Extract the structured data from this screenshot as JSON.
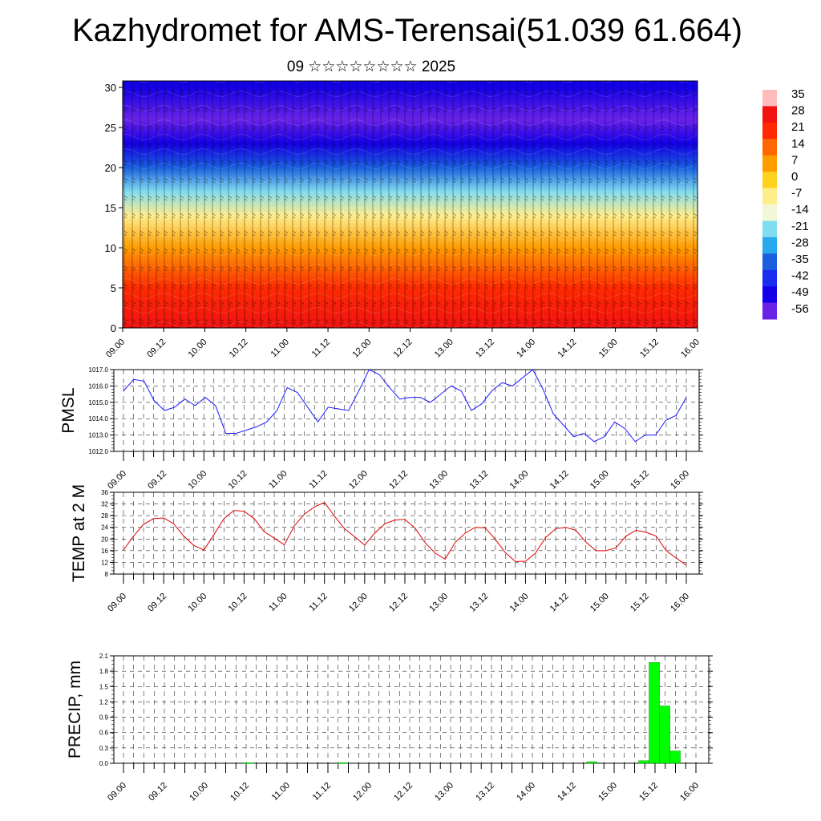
{
  "page": {
    "title": "Kazhydromet for AMS-Terensai(51.039 61.664)",
    "subtitle": "09 ☆☆☆☆☆☆☆☆ 2025"
  },
  "colors": {
    "pmsl_line": "#1a1aff",
    "temp_line": "#e00000",
    "precip_bar": "#00ff00",
    "precip_bar_edge": "#009900"
  },
  "chart_data": [
    {
      "type": "heatmap",
      "name": "upper-air-section",
      "x_ticks": [
        "09.00",
        "09.12",
        "10.00",
        "10.12",
        "11.00",
        "11.12",
        "12.00",
        "12.12",
        "13.00",
        "13.12",
        "14.00",
        "14.12",
        "15.00",
        "15.12",
        "16.00"
      ],
      "y_ticks": [
        "0",
        "5",
        "10",
        "15",
        "20",
        "25",
        "30"
      ],
      "ylim": [
        0,
        30.8
      ],
      "colorbar": {
        "labels": [
          "35",
          "28",
          "21",
          "14",
          "7",
          "0",
          "-7",
          "-14",
          "-21",
          "-28",
          "-35",
          "-42",
          "-49",
          "-56"
        ],
        "colors": [
          "#ffbcbc",
          "#f21212",
          "#ff2a00",
          "#ff6800",
          "#ff9c00",
          "#ffd21e",
          "#ffee8c",
          "#f0f8d8",
          "#80dcf0",
          "#28a8ee",
          "#1a5fe0",
          "#1a2cf0",
          "#1400e8",
          "#6a22e8"
        ]
      },
      "temperature_by_height": [
        {
          "z": 0,
          "t": 28
        },
        {
          "z": 5,
          "t": 22
        },
        {
          "z": 10,
          "t": 6
        },
        {
          "z": 14,
          "t": -7
        },
        {
          "z": 17,
          "t": -18
        },
        {
          "z": 20,
          "t": -35
        },
        {
          "z": 23,
          "t": -52
        },
        {
          "z": 26,
          "t": -55
        },
        {
          "z": 30,
          "t": -49
        }
      ]
    },
    {
      "type": "line",
      "name": "pmsl",
      "ylabel": "PMSL",
      "ylim": [
        1012.0,
        1017.0
      ],
      "y_ticks": [
        "1012.0",
        "1013.0",
        "1014.0",
        "1015.0",
        "1016.0",
        "1017.0"
      ],
      "x_ticks": [
        "09.00",
        "09.12",
        "10.00",
        "10.12",
        "11.00",
        "11.12",
        "12.00",
        "12.12",
        "13.00",
        "13.12",
        "14.00",
        "14.12",
        "15.00",
        "15.12",
        "16.00"
      ],
      "series": [
        {
          "values": [
            1015.7,
            1016.4,
            1016.3,
            1015.1,
            1014.5,
            1014.7,
            1015.2,
            1014.8,
            1015.3,
            1014.8,
            1013.1,
            1013.1,
            1013.3,
            1013.5,
            1013.8,
            1014.5,
            1015.9,
            1015.6,
            1014.7,
            1013.8,
            1014.7,
            1014.6,
            1014.5,
            1015.7,
            1017.0,
            1016.7,
            1015.9,
            1015.2,
            1015.3,
            1015.3,
            1015.0,
            1015.5,
            1016.0,
            1015.7,
            1014.5,
            1014.9,
            1015.7,
            1016.2,
            1016.0,
            1016.5,
            1017.0,
            1015.8,
            1014.3,
            1013.6,
            1012.9,
            1013.1,
            1012.6,
            1012.9,
            1013.8,
            1013.4,
            1012.6,
            1013.0,
            1013.0,
            1013.9,
            1014.2,
            1015.3
          ]
        }
      ]
    },
    {
      "type": "line",
      "name": "temp-2m",
      "ylabel": "TEMP at 2 M",
      "ylim": [
        8,
        36
      ],
      "y_ticks": [
        "8",
        "12",
        "16",
        "20",
        "24",
        "28",
        "32",
        "36"
      ],
      "x_ticks": [
        "09.00",
        "09.12",
        "10.00",
        "10.12",
        "11.00",
        "11.12",
        "12.00",
        "12.12",
        "13.00",
        "13.12",
        "14.00",
        "14.12",
        "15.00",
        "15.12",
        "16.00"
      ],
      "series": [
        {
          "values": [
            16.2,
            21.0,
            25.0,
            27.0,
            27.2,
            25.2,
            21.0,
            17.8,
            16.2,
            21.5,
            27.0,
            29.8,
            29.5,
            27.0,
            22.5,
            20.3,
            18.0,
            24.5,
            28.5,
            31.0,
            32.5,
            27.8,
            23.5,
            20.8,
            17.9,
            22.0,
            25.2,
            26.5,
            26.7,
            23.8,
            18.8,
            15.2,
            13.1,
            18.8,
            22.0,
            24.0,
            23.8,
            19.9,
            15.3,
            12.3,
            12.4,
            15.2,
            20.5,
            23.5,
            24.0,
            23.0,
            19.0,
            16.0,
            16.0,
            17.0,
            21.0,
            23.0,
            22.3,
            21.0,
            16.0,
            13.5,
            11.0
          ]
        }
      ]
    },
    {
      "type": "bar",
      "name": "precip",
      "ylabel": "PRECIP, mm",
      "ylim": [
        0.0,
        2.1
      ],
      "y_ticks": [
        "0.0",
        "0.3",
        "0.6",
        "0.9",
        "1.2",
        "1.5",
        "1.8",
        "2.1"
      ],
      "x_ticks": [
        "09.00",
        "09.12",
        "10.00",
        "10.12",
        "11.00",
        "11.12",
        "12.00",
        "12.12",
        "13.00",
        "13.12",
        "14.00",
        "14.12",
        "15.00",
        "15.12",
        "16.00"
      ],
      "series": [
        {
          "values": [
            0,
            0,
            0,
            0,
            0,
            0,
            0,
            0,
            0,
            0,
            0,
            0,
            0.01,
            0,
            0,
            0,
            0,
            0,
            0,
            0,
            0,
            0.01,
            0,
            0,
            0,
            0,
            0,
            0,
            0,
            0,
            0,
            0,
            0,
            0,
            0,
            0,
            0,
            0,
            0,
            0,
            0,
            0,
            0,
            0,
            0,
            0.03,
            0,
            0,
            0,
            0,
            0.05,
            1.97,
            1.12,
            0.24,
            0,
            0
          ]
        }
      ]
    }
  ]
}
